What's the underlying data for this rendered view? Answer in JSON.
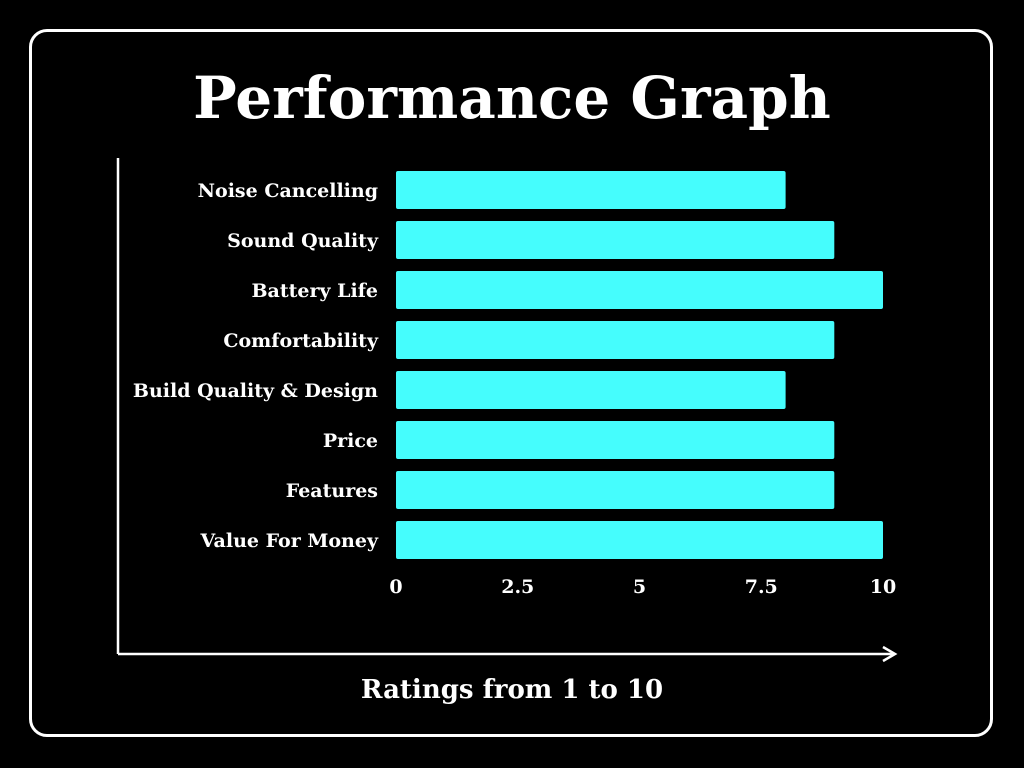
{
  "chart_data": {
    "type": "bar",
    "orientation": "horizontal",
    "title": "Performance Graph",
    "xlabel": "Ratings from 1 to 10",
    "ylabel": "",
    "categories": [
      "Noise Cancelling",
      "Sound Quality",
      "Battery Life",
      "Comfortability",
      "Build Quality & Design",
      "Price",
      "Features",
      "Value For Money"
    ],
    "values": [
      8,
      9,
      10,
      9,
      8,
      9,
      9,
      10
    ],
    "xlim": [
      0,
      10
    ],
    "xticks": [
      "0",
      "2.5",
      "5",
      "7.5",
      "10"
    ],
    "grid": false,
    "legend": "none",
    "colors": {
      "background": "#000000",
      "bar": "#45fdfd",
      "text": "#ffffff",
      "axis": "#ffffff"
    }
  }
}
